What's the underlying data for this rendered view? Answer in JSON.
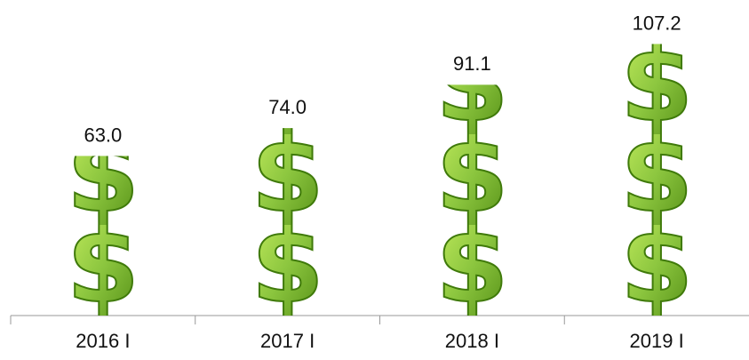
{
  "chart_data": {
    "type": "bar",
    "categories": [
      "2016 I",
      "2017 I",
      "2018 I",
      "2019 I"
    ],
    "values": [
      63.0,
      74.0,
      91.1,
      107.2
    ],
    "value_labels": [
      "63.0",
      "74.0",
      "91.1",
      "107.2"
    ],
    "color": "#8cc63f"
  }
}
